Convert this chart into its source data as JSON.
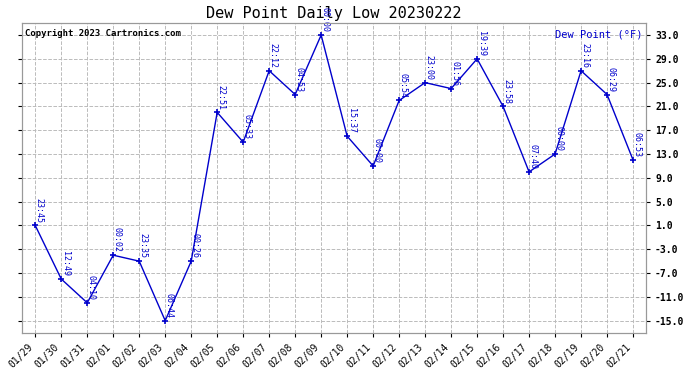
{
  "title": "Dew Point Daily Low 20230222",
  "ylabel_right": "Dew Point (°F)",
  "copyright": "Copyright 2023 Cartronics.com",
  "background_color": "#ffffff",
  "grid_color": "#bbbbbb",
  "line_color": "#0000cc",
  "text_color_blue": "#0000cc",
  "text_color_black": "#000000",
  "xlabels": [
    "01/29",
    "01/30",
    "01/31",
    "02/01",
    "02/02",
    "02/03",
    "02/04",
    "02/05",
    "02/06",
    "02/07",
    "02/08",
    "02/09",
    "02/10",
    "02/11",
    "02/12",
    "02/13",
    "02/14",
    "02/15",
    "02/16",
    "02/17",
    "02/18",
    "02/19",
    "02/20",
    "02/21"
  ],
  "x_indices": [
    0,
    1,
    2,
    3,
    4,
    5,
    6,
    7,
    8,
    9,
    10,
    11,
    12,
    13,
    14,
    15,
    16,
    17,
    18,
    19,
    20,
    21,
    22,
    23
  ],
  "yvalues": [
    1.0,
    -8.0,
    -12.0,
    -4.0,
    -5.0,
    -15.0,
    -5.0,
    20.0,
    15.0,
    27.0,
    23.0,
    33.0,
    16.0,
    11.0,
    22.0,
    25.0,
    24.0,
    29.0,
    21.0,
    10.0,
    13.0,
    27.0,
    23.0,
    12.0
  ],
  "annotations": [
    "23:45",
    "12:49",
    "04:10",
    "00:02",
    "23:35",
    "06:44",
    "00:26",
    "22:51",
    "05:33",
    "22:12",
    "04:53",
    "00:00",
    "15:37",
    "00:00",
    "05:54",
    "23:00",
    "01:56",
    "19:39",
    "23:58",
    "07:40",
    "00:00",
    "23:16",
    "06:29",
    "06:53"
  ],
  "ylim": [
    -17.0,
    35.0
  ],
  "yticks": [
    -15.0,
    -11.0,
    -7.0,
    -3.0,
    1.0,
    5.0,
    9.0,
    13.0,
    17.0,
    21.0,
    25.0,
    29.0,
    33.0
  ],
  "ytick_labels": [
    "-15.0",
    "-11.0",
    "-7.0",
    "-3.0",
    "1.0",
    "5.0",
    "9.0",
    "13.0",
    "17.0",
    "21.0",
    "25.0",
    "29.0",
    "33.0"
  ],
  "title_fontsize": 11,
  "xtick_fontsize": 7,
  "ytick_fontsize": 7,
  "annot_fontsize": 6,
  "copyright_fontsize": 6.5,
  "ylabel_fontsize": 7.5
}
